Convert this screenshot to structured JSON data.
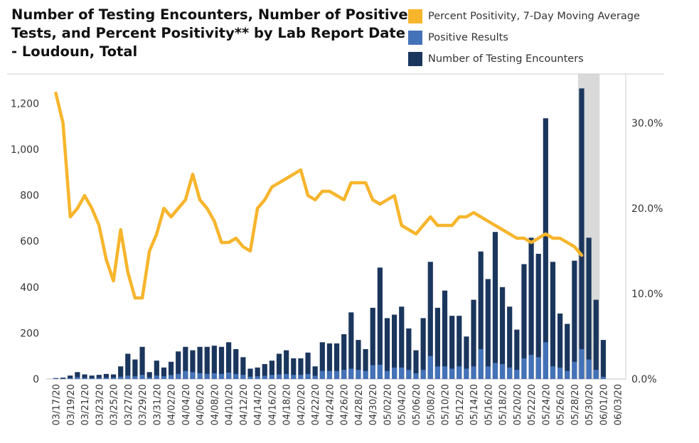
{
  "chart_data": {
    "type": "bar",
    "title": "Number of Testing Encounters, Number of Positive Tests, and Percent Positivity** by Lab Report Date - Loudoun, Total",
    "legend_position": "top-right",
    "legend": [
      {
        "name": "Percent Positivity, 7-Day Moving Average",
        "color": "#F7B52C"
      },
      {
        "name": "Positive Results",
        "color": "#4472B8"
      },
      {
        "name": "Number of Testing Encounters",
        "color": "#1B365D"
      }
    ],
    "y_left": {
      "min": 0,
      "max": 1300,
      "ticks": [
        0,
        200,
        400,
        600,
        800,
        1000,
        1200
      ],
      "tick_labels": [
        "0",
        "200",
        "400",
        "600",
        "800",
        "1,000",
        "1,200"
      ]
    },
    "y_right": {
      "min": 0,
      "max": 0.35,
      "ticks": [
        0,
        0.1,
        0.2,
        0.3
      ],
      "tick_labels": [
        "0.0%",
        "10.0%",
        "20.0%",
        "30.0%"
      ]
    },
    "x_tick_labels": [
      "03/17/20",
      "03/19/20",
      "03/21/20",
      "03/23/20",
      "03/25/20",
      "03/27/20",
      "03/29/20",
      "03/31/20",
      "04/02/20",
      "04/04/20",
      "04/06/20",
      "04/08/20",
      "04/10/20",
      "04/12/20",
      "04/14/20",
      "04/16/20",
      "04/18/20",
      "04/20/20",
      "04/22/20",
      "04/24/20",
      "04/26/20",
      "04/28/20",
      "04/30/20",
      "05/02/20",
      "05/04/20",
      "05/06/20",
      "05/08/20",
      "05/10/20",
      "05/12/20",
      "05/14/20",
      "05/16/20",
      "05/18/20",
      "05/20/20",
      "05/22/20",
      "05/24/20",
      "05/26/20",
      "05/28/20",
      "05/30/20",
      "06/01/20",
      "06/03/20"
    ],
    "day_count": 80,
    "shaded_range": {
      "from_day": 73,
      "to_day": 76
    },
    "series": [
      {
        "name": "Number of Testing Encounters",
        "values": [
          4,
          6,
          15,
          30,
          20,
          15,
          18,
          22,
          20,
          55,
          110,
          85,
          140,
          30,
          80,
          50,
          75,
          120,
          140,
          125,
          140,
          140,
          145,
          140,
          160,
          130,
          95,
          45,
          50,
          65,
          80,
          110,
          125,
          90,
          90,
          115,
          55,
          160,
          155,
          155,
          195,
          290,
          170,
          130,
          310,
          485,
          265,
          280,
          315,
          220,
          125,
          265,
          510,
          310,
          385,
          275,
          275,
          185,
          345,
          555,
          435,
          640,
          400,
          315,
          215,
          500,
          615,
          545,
          1135,
          510,
          285,
          240,
          515,
          1265,
          615,
          345,
          170
        ]
      },
      {
        "name": "Positive Results",
        "values": [
          2,
          2,
          4,
          8,
          5,
          4,
          5,
          6,
          6,
          10,
          15,
          12,
          18,
          7,
          15,
          12,
          17,
          22,
          35,
          30,
          25,
          22,
          25,
          22,
          28,
          22,
          18,
          10,
          12,
          14,
          18,
          20,
          22,
          18,
          18,
          22,
          14,
          35,
          35,
          35,
          40,
          45,
          40,
          35,
          60,
          62,
          35,
          50,
          50,
          40,
          25,
          40,
          100,
          55,
          55,
          45,
          55,
          45,
          55,
          130,
          55,
          70,
          65,
          50,
          40,
          90,
          105,
          95,
          160,
          55,
          50,
          35,
          75,
          130,
          85,
          40,
          10
        ]
      },
      {
        "name": "Percent Positivity, 7-Day Moving Average",
        "values": [
          0.335,
          0.3,
          0.19,
          0.2,
          0.215,
          0.2,
          0.18,
          0.14,
          0.115,
          0.175,
          0.125,
          0.095,
          0.095,
          0.15,
          0.17,
          0.2,
          0.19,
          0.2,
          0.21,
          0.24,
          0.21,
          0.2,
          0.185,
          0.16,
          0.16,
          0.165,
          0.155,
          0.15,
          0.2,
          0.21,
          0.225,
          0.23,
          0.235,
          0.24,
          0.245,
          0.215,
          0.21,
          0.22,
          0.22,
          0.215,
          0.21,
          0.23,
          0.23,
          0.23,
          0.21,
          0.205,
          0.21,
          0.215,
          0.18,
          0.175,
          0.17,
          0.18,
          0.19,
          0.18,
          0.18,
          0.18,
          0.19,
          0.19,
          0.195,
          0.19,
          0.185,
          0.18,
          0.175,
          0.17,
          0.165,
          0.165,
          0.16,
          0.165,
          0.17,
          0.165,
          0.165,
          0.16,
          0.155,
          0.145
        ]
      }
    ]
  }
}
